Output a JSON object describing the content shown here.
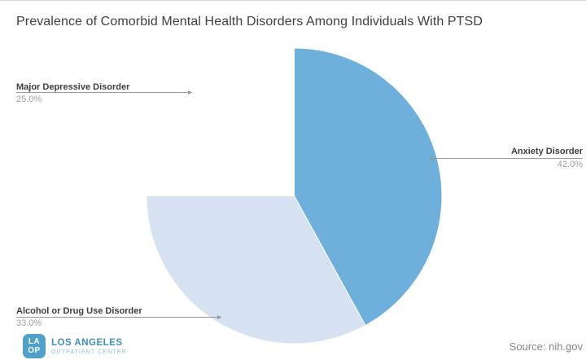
{
  "chart_data": {
    "type": "pie",
    "title": "Prevalence of Comorbid Mental Health Disorders Among Individuals With PTSD",
    "unit": "%",
    "start_angle_deg": -90,
    "direction": "clockwise",
    "labels_layout": "outside-callouts",
    "slices": [
      {
        "label": "Anxiety Disorder",
        "value": 42.0,
        "display": "42.0%",
        "color": "#6eafdc"
      },
      {
        "label": "Alcohol or Drug Use Disorder",
        "value": 33.0,
        "display": "33.0%",
        "color": "#d6e2f1"
      },
      {
        "label": "Major Depressive Disorder",
        "value": 25.0,
        "display": "25.0%",
        "color": "#ffffff"
      }
    ],
    "source_note": "Source: nih.gov"
  },
  "logo": {
    "monogram_line1": "LA",
    "monogram_line2": "OP",
    "name": "LOS ANGELES",
    "subtitle": "OUTPATIENT CENTER",
    "icon_bg_color": "#4fa0cb",
    "name_color": "#3e8fb8",
    "subtitle_color": "#8fc0d8"
  },
  "style": {
    "callout_line_color": "#999999",
    "label_color": "#3d3d3d",
    "percent_color": "#9e9e9e",
    "title_color": "#3f3f3f"
  }
}
